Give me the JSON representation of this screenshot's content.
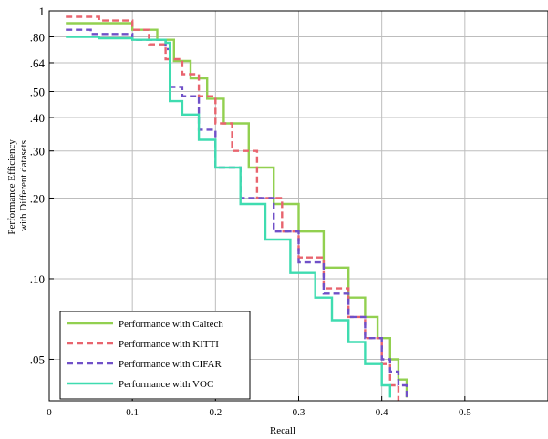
{
  "chart_data": {
    "type": "line",
    "xlabel": "Recall",
    "ylabel": [
      "Performance Efficiency",
      "with Different datasets"
    ],
    "xlim": [
      0,
      0.6
    ],
    "ylim": [
      0.035,
      1
    ],
    "yscale": "log",
    "grid": true,
    "legend_position": "bottom-left",
    "xticks": [
      0,
      0.1,
      0.2,
      0.3,
      0.4,
      0.5
    ],
    "xtick_labels": [
      "0",
      "0.1",
      "0.2",
      "0.3",
      "0.4",
      "0.5"
    ],
    "yticks": [
      1,
      0.8,
      0.64,
      0.5,
      0.4,
      0.3,
      0.2,
      0.1,
      0.05
    ],
    "ytick_labels": [
      "1",
      ".80",
      ".64",
      ".50",
      ".40",
      ".30",
      ".20",
      ".10",
      ".05"
    ],
    "series": [
      {
        "name": "Performance with Caltech",
        "color": "#92d050",
        "dash": "solid",
        "x": [
          0.02,
          0.06,
          0.1,
          0.13,
          0.15,
          0.17,
          0.19,
          0.21,
          0.24,
          0.27,
          0.3,
          0.33,
          0.36,
          0.38,
          0.395,
          0.41,
          0.42,
          0.43
        ],
        "y": [
          0.9,
          0.9,
          0.85,
          0.78,
          0.65,
          0.56,
          0.47,
          0.38,
          0.26,
          0.19,
          0.15,
          0.11,
          0.085,
          0.072,
          0.06,
          0.05,
          0.042,
          0.036
        ]
      },
      {
        "name": "Performance with KITTI",
        "color": "#e8646e",
        "dash": "dashed",
        "x": [
          0.02,
          0.06,
          0.1,
          0.12,
          0.14,
          0.16,
          0.18,
          0.2,
          0.22,
          0.25,
          0.28,
          0.3,
          0.33,
          0.36,
          0.38,
          0.4,
          0.41,
          0.42
        ],
        "y": [
          0.95,
          0.92,
          0.85,
          0.75,
          0.66,
          0.58,
          0.48,
          0.38,
          0.3,
          0.2,
          0.15,
          0.12,
          0.092,
          0.072,
          0.06,
          0.048,
          0.04,
          0.035
        ]
      },
      {
        "name": "Performance with CIFAR",
        "color": "#7050c8",
        "dash": "dashed",
        "x": [
          0.02,
          0.05,
          0.1,
          0.14,
          0.145,
          0.16,
          0.18,
          0.2,
          0.23,
          0.27,
          0.3,
          0.33,
          0.36,
          0.38,
          0.4,
          0.41,
          0.42,
          0.43
        ],
        "y": [
          0.85,
          0.82,
          0.78,
          0.72,
          0.52,
          0.48,
          0.36,
          0.26,
          0.2,
          0.15,
          0.115,
          0.088,
          0.072,
          0.06,
          0.05,
          0.045,
          0.04,
          0.036
        ]
      },
      {
        "name": "Performance with VOC",
        "color": "#3fdcb0",
        "dash": "solid",
        "x": [
          0.02,
          0.06,
          0.1,
          0.14,
          0.145,
          0.16,
          0.18,
          0.2,
          0.23,
          0.26,
          0.29,
          0.32,
          0.34,
          0.36,
          0.38,
          0.4,
          0.41
        ],
        "y": [
          0.8,
          0.79,
          0.78,
          0.76,
          0.46,
          0.41,
          0.33,
          0.26,
          0.19,
          0.14,
          0.105,
          0.085,
          0.07,
          0.058,
          0.048,
          0.04,
          0.036
        ]
      }
    ]
  }
}
